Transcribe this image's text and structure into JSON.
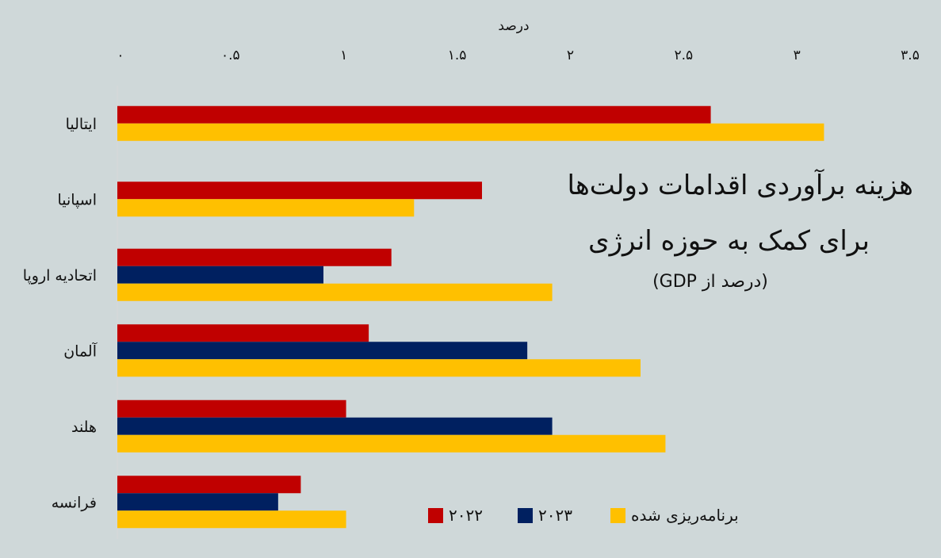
{
  "chart_data": {
    "type": "bar",
    "orientation": "horizontal",
    "title_line1": "هزینه برآوردی اقدامات دولت‌ها",
    "title_line2": "برای کمک به حوزه انرژی",
    "subtitle": "(درصد از GDP)",
    "xlabel": "درصد",
    "xlim": [
      0,
      3.5
    ],
    "xticks": [
      0,
      0.5,
      1,
      1.5,
      2,
      2.5,
      3,
      3.5
    ],
    "xtick_labels": [
      "۰",
      "۰.۵",
      "۱",
      "۱.۵",
      "۲",
      "۲.۵",
      "۳",
      "۳.۵"
    ],
    "categories": [
      "ایتالیا",
      "اسپانیا",
      "اتحادیه اروپا",
      "آلمان",
      "هلند",
      "فرانسه"
    ],
    "series": [
      {
        "name": "۲۰۲۲",
        "color": "#c00000",
        "values": [
          2.62,
          1.61,
          1.21,
          1.11,
          1.01,
          0.81
        ]
      },
      {
        "name": "۲۰۲۳",
        "color": "#002060",
        "values": [
          null,
          null,
          0.91,
          1.81,
          1.92,
          0.71
        ]
      },
      {
        "name": "برنامه‌ریزی شده",
        "color": "#ffc000",
        "values": [
          3.12,
          1.31,
          1.92,
          2.31,
          2.42,
          1.01
        ]
      }
    ],
    "legend_position": "bottom-right",
    "grid": false
  }
}
